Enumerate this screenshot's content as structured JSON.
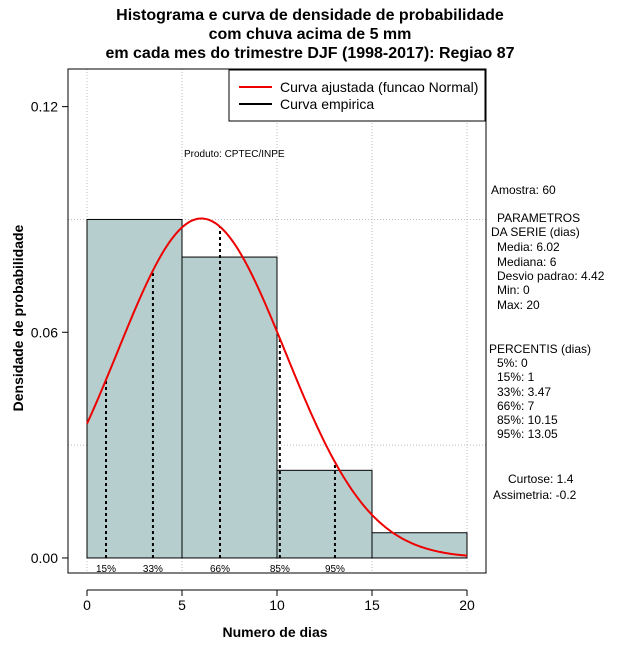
{
  "chart_data": {
    "type": "histogram",
    "title_lines": [
      "Histograma e curva de densidade de probabilidade",
      "com chuva acima de 5 mm",
      "em cada mes do trimestre DJF (1998-2017): Regiao 87"
    ],
    "xlabel": "Numero de dias",
    "ylabel": "Densidade de probabilidade",
    "xlim": [
      -1,
      21
    ],
    "ylim": [
      -0.004,
      0.13
    ],
    "x_ticks": [
      "0",
      "5",
      "10",
      "15",
      "20"
    ],
    "y_ticks": [
      "0.00",
      "0.06",
      "0.12"
    ],
    "bins": [
      {
        "from": 0,
        "to": 5,
        "density": 0.09
      },
      {
        "from": 5,
        "to": 10,
        "density": 0.08
      },
      {
        "from": 10,
        "to": 15,
        "density": 0.0233
      },
      {
        "from": 15,
        "to": 20,
        "density": 0.0067
      }
    ],
    "bar_color": "#b7cece",
    "normal_curve": {
      "mean": 6.02,
      "sd": 4.42,
      "color": "#ee0000"
    },
    "percentile_lines": [
      {
        "label": "15%",
        "x": 1
      },
      {
        "label": "33%",
        "x": 3.47
      },
      {
        "label": "66%",
        "x": 7
      },
      {
        "label": "85%",
        "x": 10.15
      },
      {
        "label": "95%",
        "x": 13.05
      }
    ],
    "legend": [
      {
        "label": "Curva ajustada (funcao Normal)",
        "color": "#ee0000"
      },
      {
        "label": "Curva empirica",
        "color": "#000000"
      }
    ],
    "annotation": "Produto: CPTEC/INPE"
  },
  "sidebar": {
    "amostra": "Amostra: 60",
    "params_title_1": "PARAMETROS",
    "params_title_2": "DA SERIE (dias)",
    "media": "Media: 6.02",
    "mediana": "Mediana: 6",
    "desvio": "Desvio padrao: 4.42",
    "min": "Min: 0",
    "max": "Max: 20",
    "percentis_title": "PERCENTIS (dias)",
    "p5": "5%: 0",
    "p15": "15%: 1",
    "p33": "33%: 3.47",
    "p66": "66%: 7",
    "p85": "85%: 10.15",
    "p95": "95%: 13.05",
    "curtose": "Curtose: 1.4",
    "assimetria": "Assimetria: -0.2"
  }
}
